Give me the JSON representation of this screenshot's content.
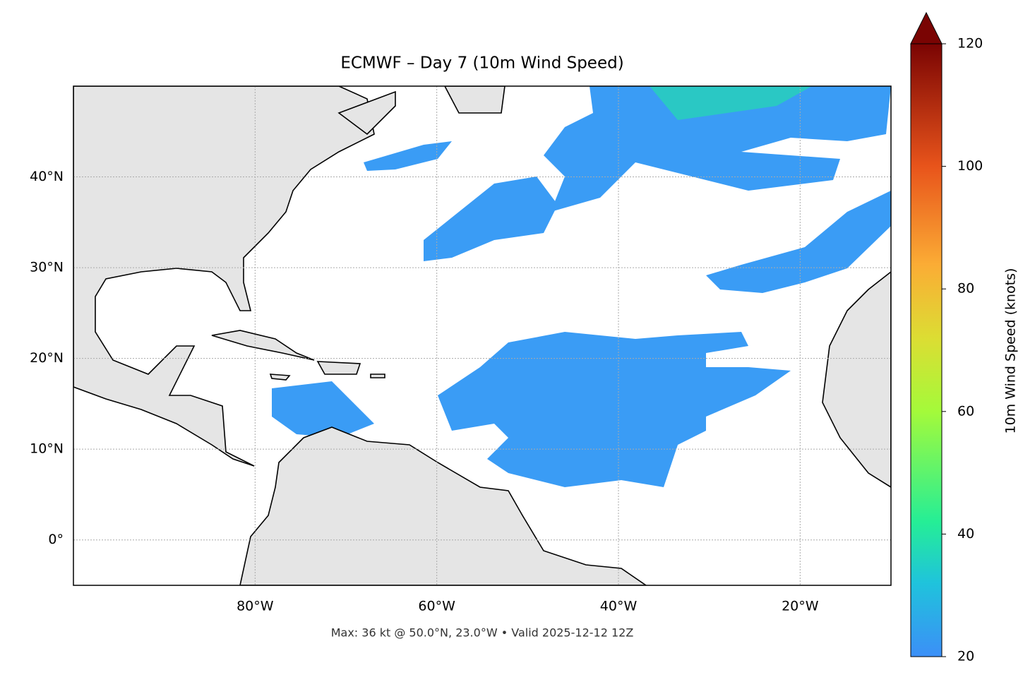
{
  "chart_data": {
    "type": "map",
    "title": "ECMWF – Day 7 (10m Wind Speed)",
    "footnote": "Max: 36 kt @ 50.0°N, 23.0°W • Valid 2025-12-12 12Z",
    "xlim": [
      -100,
      -10
    ],
    "ylim": [
      -5,
      50
    ],
    "xticks": [
      {
        "value": -80,
        "label": "80°W"
      },
      {
        "value": -60,
        "label": "60°W"
      },
      {
        "value": -40,
        "label": "40°W"
      },
      {
        "value": -20,
        "label": "20°W"
      }
    ],
    "yticks": [
      {
        "value": 0,
        "label": "0°"
      },
      {
        "value": 10,
        "label": "10°N"
      },
      {
        "value": 20,
        "label": "20°N"
      },
      {
        "value": 30,
        "label": "30°N"
      },
      {
        "value": 40,
        "label": "40°N"
      }
    ],
    "grid": true,
    "colorbar": {
      "label": "10m Wind Speed (knots)",
      "lim": [
        20,
        120
      ],
      "ticks": [
        20,
        40,
        60,
        80,
        100,
        120
      ]
    }
  }
}
